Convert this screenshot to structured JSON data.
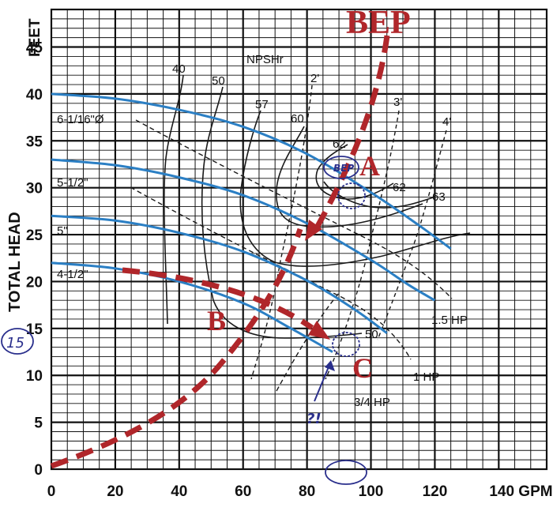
{
  "chart_data": {
    "type": "line",
    "title": "",
    "x_label": "GPM",
    "y_label_top": "FEET",
    "y_label_side": "TOTAL HEAD",
    "xlim": [
      0,
      155
    ],
    "ylim": [
      0,
      49
    ],
    "x_ticks": [
      {
        "value": 0,
        "label": "0"
      },
      {
        "value": 20,
        "label": "20"
      },
      {
        "value": 40,
        "label": "40"
      },
      {
        "value": 60,
        "label": "60"
      },
      {
        "value": 80,
        "label": "80"
      },
      {
        "value": 100,
        "label": "100"
      },
      {
        "value": 120,
        "label": "120"
      },
      {
        "value": 140,
        "label": "140 GPM"
      }
    ],
    "y_ticks": [
      {
        "value": 0,
        "label": "0"
      },
      {
        "value": 5,
        "label": "5"
      },
      {
        "value": 10,
        "label": "10"
      },
      {
        "value": 15,
        "label": "15"
      },
      {
        "value": 20,
        "label": "20"
      },
      {
        "value": 25,
        "label": "25"
      },
      {
        "value": 30,
        "label": "30"
      },
      {
        "value": 35,
        "label": "35"
      },
      {
        "value": 40,
        "label": "40"
      },
      {
        "value": 45,
        "label": "45"
      }
    ],
    "grid": true,
    "series": [
      {
        "name": "6-1/16\"Ø",
        "color": "#2b7fc4",
        "points": [
          [
            0,
            40
          ],
          [
            20,
            39.5
          ],
          [
            40,
            38.3
          ],
          [
            60,
            36.5
          ],
          [
            80,
            33.6
          ],
          [
            100,
            29.5
          ],
          [
            115,
            26
          ],
          [
            125,
            23.5
          ]
        ]
      },
      {
        "name": "5-1/2\"",
        "color": "#2b7fc4",
        "points": [
          [
            0,
            33
          ],
          [
            20,
            32.4
          ],
          [
            40,
            31.1
          ],
          [
            60,
            29.2
          ],
          [
            80,
            26.2
          ],
          [
            100,
            22.3
          ],
          [
            112,
            19.6
          ],
          [
            120,
            18
          ]
        ]
      },
      {
        "name": "5\"",
        "color": "#2b7fc4",
        "points": [
          [
            0,
            27
          ],
          [
            20,
            26.5
          ],
          [
            40,
            25.2
          ],
          [
            60,
            23.2
          ],
          [
            80,
            20.1
          ],
          [
            95,
            17
          ],
          [
            105,
            14.5
          ]
        ]
      },
      {
        "name": "4-1/2\"",
        "color": "#2b7fc4",
        "points": [
          [
            0,
            22
          ],
          [
            20,
            21.4
          ],
          [
            40,
            20
          ],
          [
            60,
            17.7
          ],
          [
            75,
            15
          ],
          [
            88,
            12.5
          ]
        ]
      }
    ],
    "efficiency_labels": [
      "40",
      "50",
      "57",
      "60",
      "62",
      "62",
      "63",
      "50"
    ],
    "npsh_label": "NPSHr",
    "npsh_labels": [
      "2'",
      "3'",
      "4'"
    ],
    "hp_labels": [
      "1.5 HP",
      "1 HP",
      "3/4 HP"
    ],
    "annotations": {
      "bep": "BEP",
      "point_a": "A",
      "point_b": "B",
      "point_c": "C",
      "bep_handwritten": "BEP",
      "circled_head": "15",
      "question": "?!"
    }
  }
}
